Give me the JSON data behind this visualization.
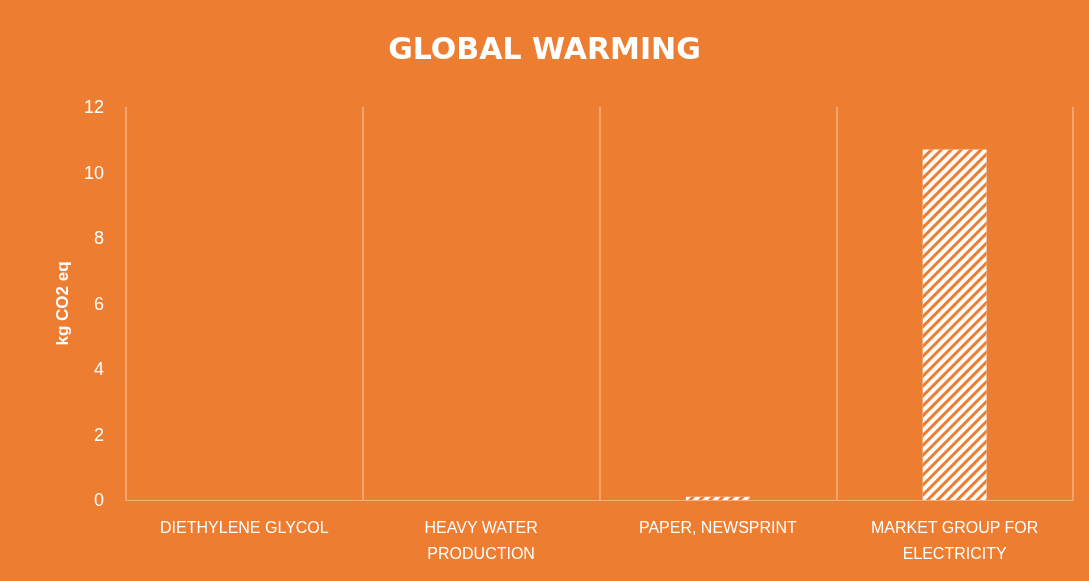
{
  "chart_data": {
    "type": "bar",
    "title": "GLOBAL WARMING",
    "ylabel": "kg CO2 eq",
    "categories": [
      "DIETHYLENE GLYCOL",
      "HEAVY WATER PRODUCTION",
      "PAPER, NEWSPRINT",
      "MARKET GROUP FOR ELECTRICITY"
    ],
    "values": [
      0,
      0,
      0.1,
      10.7
    ],
    "color": "#ffffff",
    "ylim": [
      0,
      12
    ],
    "yticks": [
      0,
      2,
      4,
      6,
      8,
      10,
      12
    ],
    "grid": "x"
  }
}
